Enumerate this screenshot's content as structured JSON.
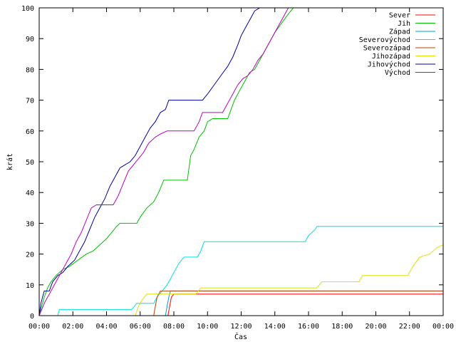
{
  "chart_data": {
    "type": "line",
    "xlabel": "Čas",
    "ylabel": "krát",
    "xlim": [
      0,
      24
    ],
    "ylim": [
      0,
      100
    ],
    "grid": false,
    "legend_position": "top-right",
    "x_ticks": [
      {
        "x": 0,
        "label": "00:00"
      },
      {
        "x": 2,
        "label": "02:00"
      },
      {
        "x": 4,
        "label": "04:00"
      },
      {
        "x": 6,
        "label": "06:00"
      },
      {
        "x": 8,
        "label": "08:00"
      },
      {
        "x": 10,
        "label": "10:00"
      },
      {
        "x": 12,
        "label": "12:00"
      },
      {
        "x": 14,
        "label": "14:00"
      },
      {
        "x": 16,
        "label": "16:00"
      },
      {
        "x": 18,
        "label": "18:00"
      },
      {
        "x": 20,
        "label": "20:00"
      },
      {
        "x": 22,
        "label": "22:00"
      },
      {
        "x": 24,
        "label": "00:00"
      }
    ],
    "y_ticks": [
      0,
      10,
      20,
      30,
      40,
      50,
      60,
      70,
      80,
      90,
      100
    ],
    "series": [
      {
        "name": "Sever",
        "color": "#ff0000",
        "points": [
          [
            7.65,
            0
          ],
          [
            7.75,
            3
          ],
          [
            7.85,
            6
          ],
          [
            8.0,
            7
          ],
          [
            24,
            7
          ]
        ]
      },
      {
        "name": "Jih",
        "color": "#00c000",
        "points": [
          [
            0,
            0
          ],
          [
            0.15,
            3
          ],
          [
            0.3,
            6
          ],
          [
            0.5,
            9
          ],
          [
            0.7,
            11
          ],
          [
            1.0,
            13
          ],
          [
            1.4,
            15
          ],
          [
            1.8,
            16
          ],
          [
            2.3,
            18
          ],
          [
            2.8,
            20
          ],
          [
            3.2,
            21
          ],
          [
            3.6,
            23
          ],
          [
            4.0,
            25
          ],
          [
            4.3,
            27
          ],
          [
            4.6,
            29
          ],
          [
            4.8,
            30
          ],
          [
            5.8,
            30
          ],
          [
            6.0,
            32
          ],
          [
            6.4,
            35
          ],
          [
            6.8,
            37
          ],
          [
            7.1,
            40
          ],
          [
            7.4,
            44
          ],
          [
            8.8,
            44
          ],
          [
            8.9,
            48
          ],
          [
            9.0,
            52
          ],
          [
            9.2,
            54
          ],
          [
            9.5,
            58
          ],
          [
            9.8,
            60
          ],
          [
            10.0,
            63
          ],
          [
            10.3,
            64
          ],
          [
            11.2,
            64
          ],
          [
            11.4,
            67
          ],
          [
            11.6,
            70
          ],
          [
            11.9,
            73
          ],
          [
            12.2,
            76
          ],
          [
            12.5,
            79
          ],
          [
            12.8,
            80
          ],
          [
            13.1,
            83
          ],
          [
            13.4,
            86
          ],
          [
            13.7,
            89
          ],
          [
            14.0,
            92
          ],
          [
            14.4,
            95
          ],
          [
            14.8,
            98
          ],
          [
            15.1,
            100
          ]
        ]
      },
      {
        "name": "Západ",
        "color": "#00a0c0",
        "points": [
          [
            7.5,
            0
          ],
          [
            7.6,
            3
          ],
          [
            7.7,
            6
          ],
          [
            7.8,
            8
          ],
          [
            24,
            8
          ]
        ]
      },
      {
        "name": "Severovýchod",
        "color": "#00e0e0",
        "points": [
          [
            1.1,
            0
          ],
          [
            1.2,
            2
          ],
          [
            5.5,
            2
          ],
          [
            5.8,
            4
          ],
          [
            6.8,
            4
          ],
          [
            7.0,
            6
          ],
          [
            7.3,
            8
          ],
          [
            7.6,
            10
          ],
          [
            7.8,
            12
          ],
          [
            8.0,
            14
          ],
          [
            8.3,
            17
          ],
          [
            8.6,
            19
          ],
          [
            9.4,
            19
          ],
          [
            9.6,
            21
          ],
          [
            9.8,
            24
          ],
          [
            15.8,
            24
          ],
          [
            16.0,
            26
          ],
          [
            16.2,
            27
          ],
          [
            16.4,
            28
          ],
          [
            16.5,
            29
          ],
          [
            24,
            29
          ]
        ]
      },
      {
        "name": "Severozápad",
        "color": "#c04000",
        "points": [
          [
            6.8,
            0
          ],
          [
            6.9,
            3
          ],
          [
            7.0,
            6
          ],
          [
            7.2,
            8
          ],
          [
            24,
            8
          ]
        ]
      },
      {
        "name": "Jihozápad",
        "color": "#e0e000",
        "points": [
          [
            5.7,
            0
          ],
          [
            5.9,
            3
          ],
          [
            6.1,
            5
          ],
          [
            6.4,
            7
          ],
          [
            9.3,
            7
          ],
          [
            9.6,
            9
          ],
          [
            16.5,
            9
          ],
          [
            16.8,
            11
          ],
          [
            19.0,
            11
          ],
          [
            19.2,
            13
          ],
          [
            21.9,
            13
          ],
          [
            22.2,
            16
          ],
          [
            22.6,
            19
          ],
          [
            23.2,
            20
          ],
          [
            23.6,
            22
          ],
          [
            24,
            23
          ]
        ]
      },
      {
        "name": "Jihovýchod",
        "color": "#0000a0",
        "points": [
          [
            0,
            0
          ],
          [
            0.1,
            4
          ],
          [
            0.3,
            8
          ],
          [
            0.6,
            8
          ],
          [
            0.8,
            11
          ],
          [
            1.1,
            13
          ],
          [
            1.4,
            14
          ],
          [
            1.7,
            16
          ],
          [
            2.1,
            18
          ],
          [
            2.4,
            21
          ],
          [
            2.7,
            24
          ],
          [
            3.0,
            28
          ],
          [
            3.3,
            32
          ],
          [
            3.6,
            35
          ],
          [
            3.9,
            38
          ],
          [
            4.2,
            42
          ],
          [
            4.5,
            45
          ],
          [
            4.8,
            48
          ],
          [
            5.1,
            49
          ],
          [
            5.4,
            50
          ],
          [
            5.7,
            52
          ],
          [
            6.0,
            55
          ],
          [
            6.3,
            58
          ],
          [
            6.6,
            61
          ],
          [
            6.9,
            63
          ],
          [
            7.2,
            66
          ],
          [
            7.5,
            67
          ],
          [
            7.7,
            70
          ],
          [
            9.7,
            70
          ],
          [
            10.0,
            72
          ],
          [
            10.4,
            75
          ],
          [
            10.8,
            78
          ],
          [
            11.2,
            81
          ],
          [
            11.5,
            84
          ],
          [
            11.8,
            88
          ],
          [
            12.0,
            91
          ],
          [
            12.3,
            94
          ],
          [
            12.6,
            97
          ],
          [
            12.8,
            99
          ],
          [
            13.1,
            100
          ]
        ]
      },
      {
        "name": "Východ",
        "color": "#c000c0",
        "points": [
          [
            0,
            0
          ],
          [
            0.3,
            4
          ],
          [
            0.6,
            7
          ],
          [
            0.8,
            9
          ],
          [
            1.0,
            11
          ],
          [
            1.3,
            14
          ],
          [
            1.6,
            17
          ],
          [
            1.9,
            20
          ],
          [
            2.2,
            24
          ],
          [
            2.5,
            27
          ],
          [
            2.8,
            31
          ],
          [
            3.1,
            35
          ],
          [
            3.4,
            36
          ],
          [
            4.4,
            36
          ],
          [
            4.7,
            39
          ],
          [
            5.0,
            43
          ],
          [
            5.3,
            47
          ],
          [
            5.6,
            49
          ],
          [
            5.9,
            51
          ],
          [
            6.2,
            53
          ],
          [
            6.5,
            56
          ],
          [
            6.9,
            58
          ],
          [
            7.2,
            59
          ],
          [
            7.6,
            60
          ],
          [
            9.2,
            60
          ],
          [
            9.5,
            63
          ],
          [
            9.7,
            66
          ],
          [
            10.9,
            66
          ],
          [
            11.2,
            69
          ],
          [
            11.5,
            72
          ],
          [
            11.8,
            75
          ],
          [
            12.1,
            77
          ],
          [
            12.4,
            78
          ],
          [
            12.7,
            80
          ],
          [
            13.0,
            83
          ],
          [
            13.3,
            85
          ],
          [
            13.6,
            88
          ],
          [
            13.9,
            91
          ],
          [
            14.2,
            94
          ],
          [
            14.5,
            97
          ],
          [
            14.8,
            100
          ]
        ]
      }
    ]
  }
}
